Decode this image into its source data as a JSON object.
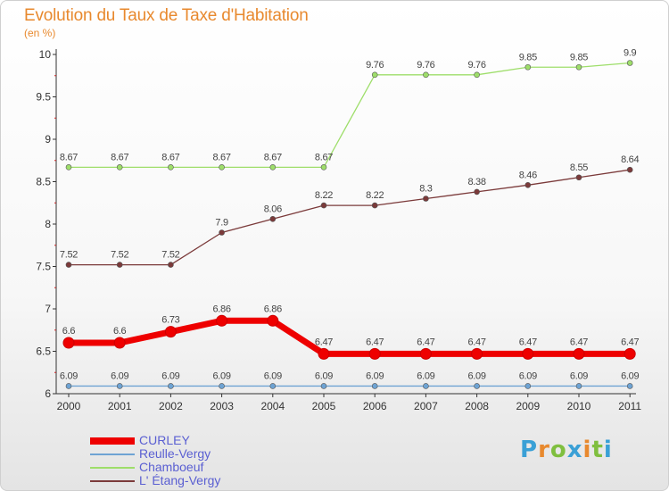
{
  "header": {
    "title": "Evolution du Taux de Taxe d'Habitation",
    "subtitle": "(en %)"
  },
  "logo": {
    "text": "Proxiti",
    "colors": [
      "#3aa0d6",
      "#e8892e",
      "#7fbf3f",
      "#3aa0d6",
      "#e8892e",
      "#7fbf3f",
      "#3aa0d6"
    ]
  },
  "chart_data": {
    "type": "line",
    "title": "Evolution du Taux de Taxe d'Habitation",
    "subtitle": "(en %)",
    "xlabel": "",
    "ylabel": "",
    "categories": [
      "2000",
      "2001",
      "2002",
      "2003",
      "2004",
      "2005",
      "2006",
      "2007",
      "2008",
      "2009",
      "2010",
      "2011"
    ],
    "ylim": [
      6,
      10
    ],
    "yticks": [
      "6",
      "6.5",
      "7",
      "7.5",
      "8",
      "8.5",
      "9",
      "9.5",
      "10"
    ],
    "grid": false,
    "legend_position": "bottom-left",
    "series": [
      {
        "name": "CURLEY",
        "color": "#ee0000",
        "values": [
          6.6,
          6.6,
          6.73,
          6.86,
          6.86,
          6.47,
          6.47,
          6.47,
          6.47,
          6.47,
          6.47,
          6.47
        ],
        "labels": [
          "6.6",
          "6.6",
          "6.73",
          "6.86",
          "6.86",
          "6.47",
          "6.47",
          "6.47",
          "6.47",
          "6.47",
          "6.47",
          "6.47"
        ]
      },
      {
        "name": "Reulle-Vergy",
        "color": "#6ea3d3",
        "values": [
          6.09,
          6.09,
          6.09,
          6.09,
          6.09,
          6.09,
          6.09,
          6.09,
          6.09,
          6.09,
          6.09,
          6.09
        ],
        "labels": [
          "6.09",
          "6.09",
          "6.09",
          "6.09",
          "6.09",
          "6.09",
          "6.09",
          "6.09",
          "6.09",
          "6.09",
          "6.09",
          "6.09"
        ]
      },
      {
        "name": "Chamboeuf",
        "color": "#9ede6a",
        "values": [
          8.67,
          8.67,
          8.67,
          8.67,
          8.67,
          8.67,
          9.76,
          9.76,
          9.76,
          9.85,
          9.85,
          9.9
        ],
        "labels": [
          "8.67",
          "8.67",
          "8.67",
          "8.67",
          "8.67",
          "8.67",
          "9.76",
          "9.76",
          "9.76",
          "9.85",
          "9.85",
          "9.9"
        ]
      },
      {
        "name": "L' Étang-Vergy",
        "color": "#7b3a3a",
        "values": [
          7.52,
          7.52,
          7.52,
          7.9,
          8.06,
          8.22,
          8.22,
          8.3,
          8.38,
          8.46,
          8.55,
          8.64
        ],
        "labels": [
          "7.52",
          "7.52",
          "7.52",
          "7.9",
          "8.06",
          "8.22",
          "8.22",
          "8.3",
          "8.38",
          "8.46",
          "8.55",
          "8.64"
        ]
      }
    ]
  }
}
